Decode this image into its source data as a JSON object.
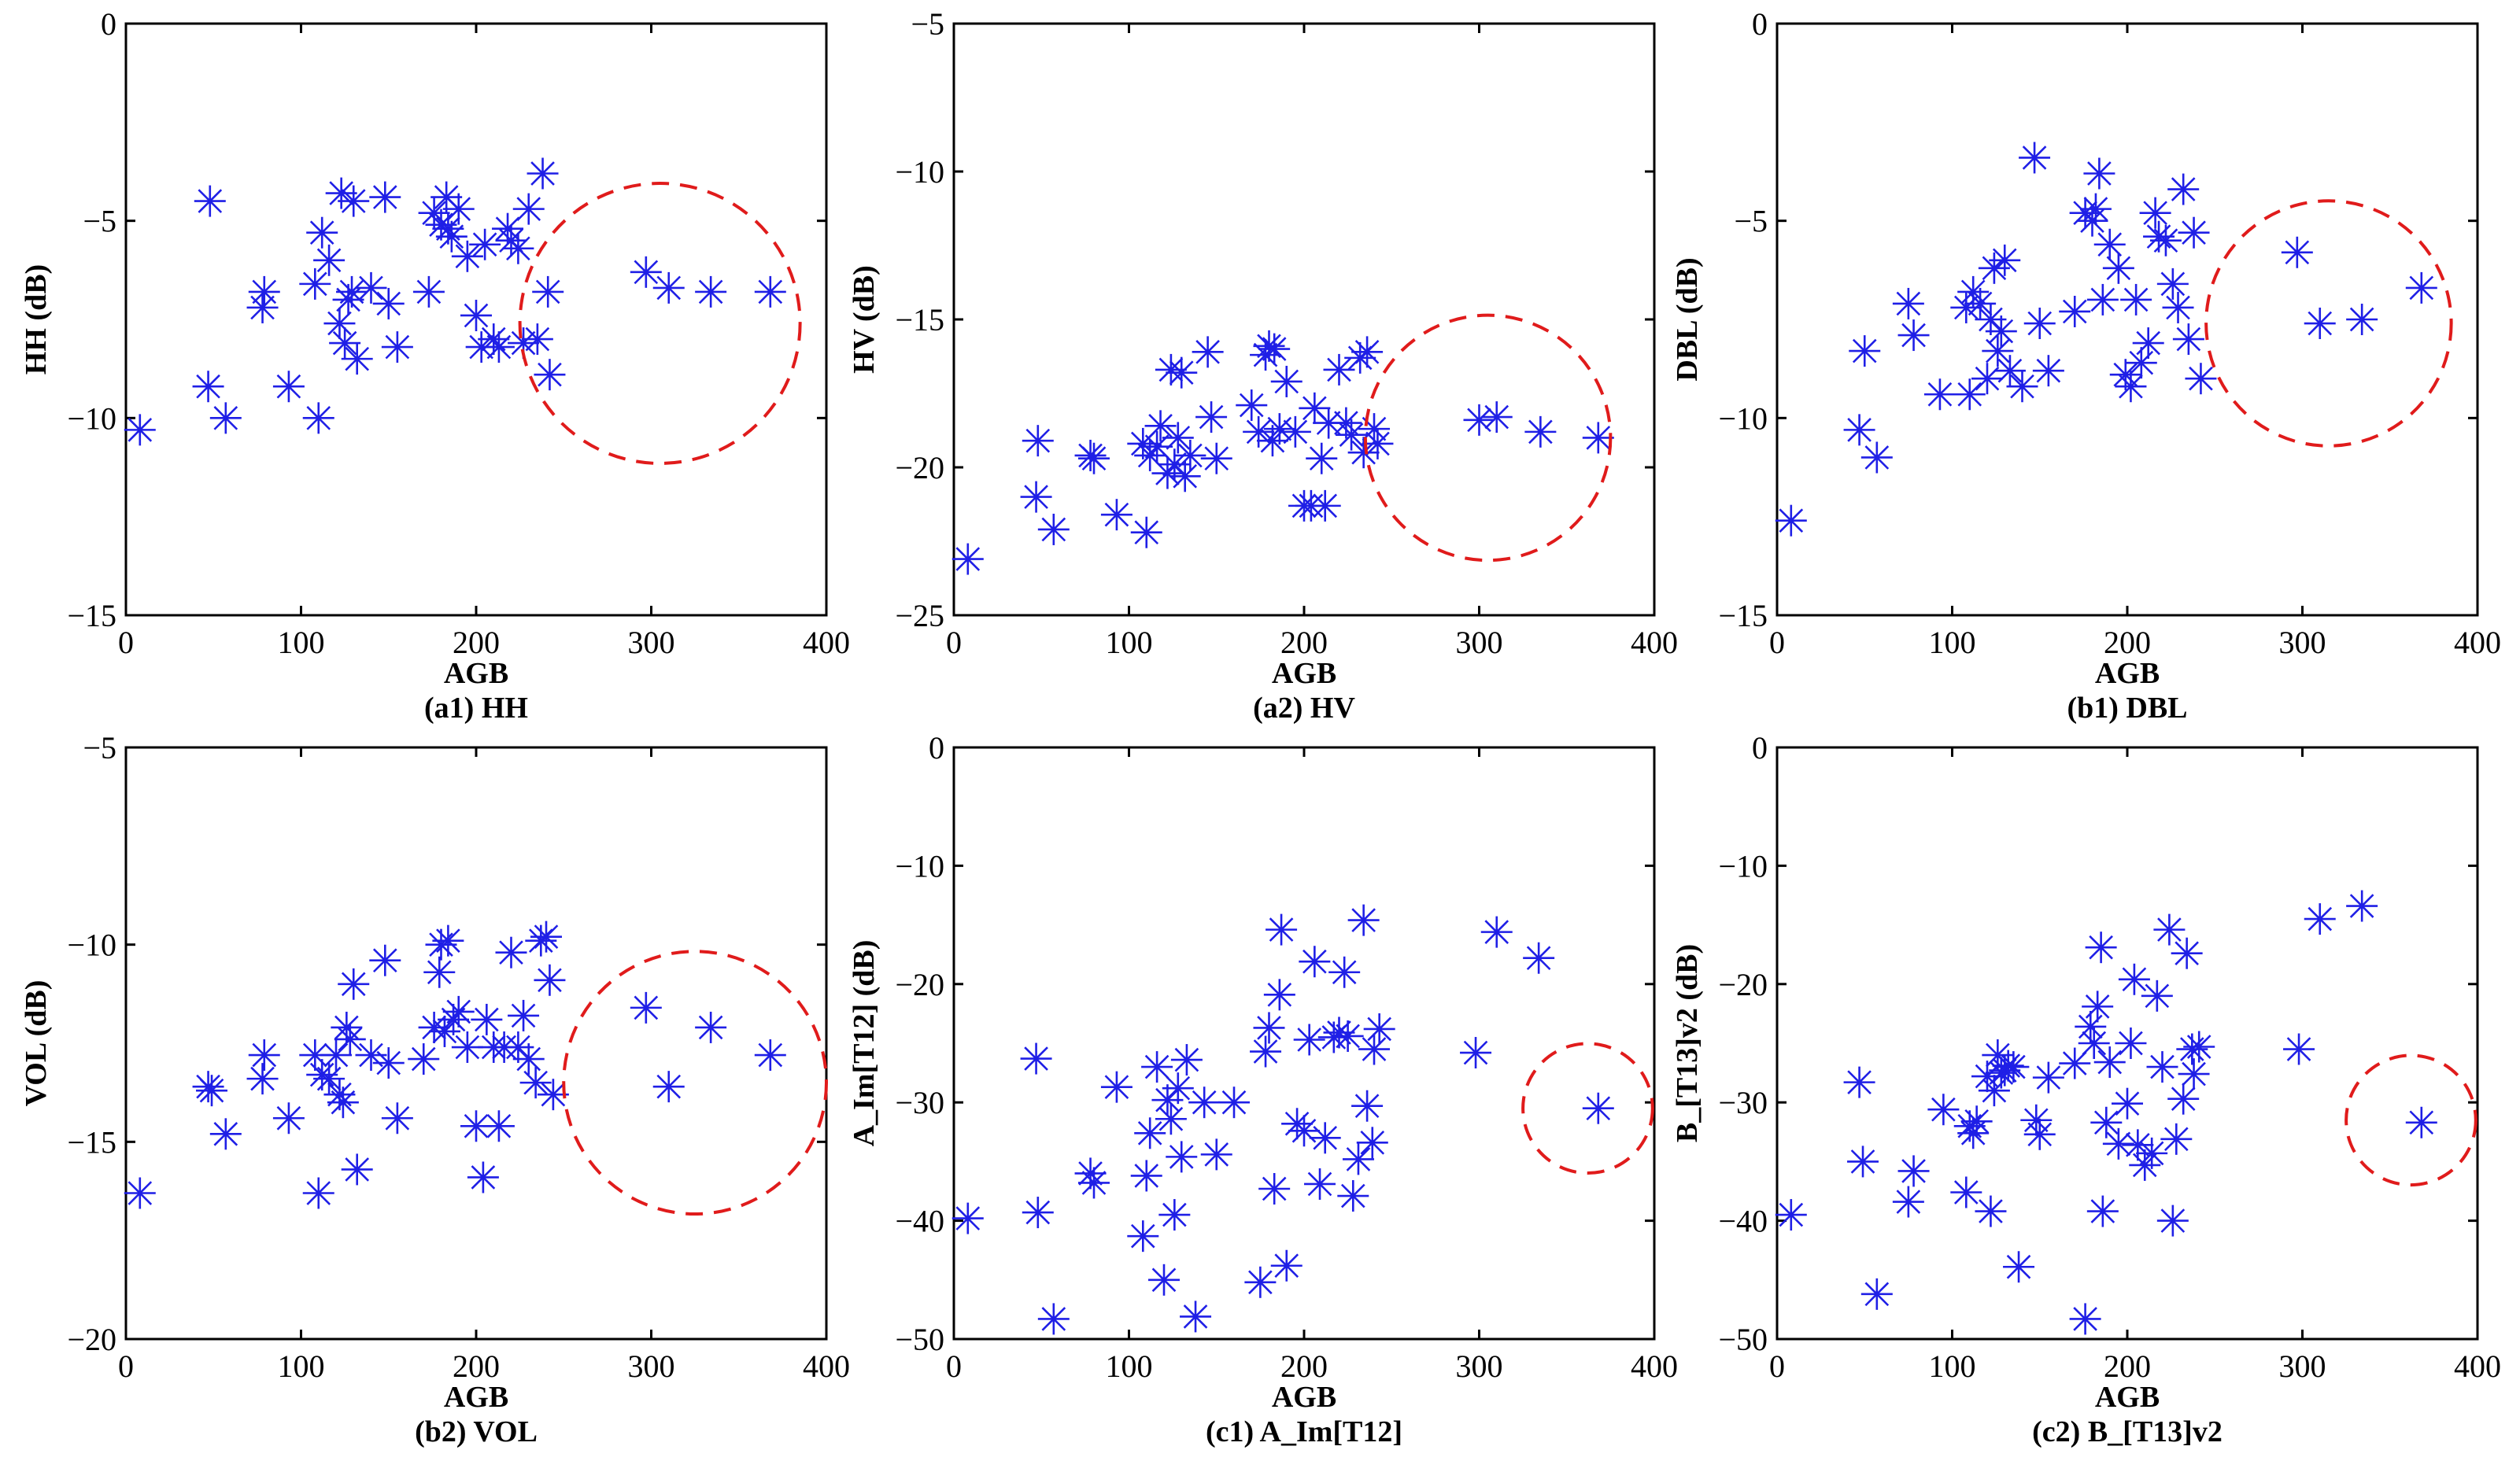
{
  "figure": {
    "marker": "asterisk",
    "marker_color": "#1f1fe6",
    "circle_color": "#e01b1b"
  },
  "chart_data": [
    {
      "type": "scatter",
      "caption": "(a1) HH",
      "xlabel": "AGB",
      "ylabel": "HH (dB)",
      "xlim": [
        0,
        400
      ],
      "ylim": [
        -15,
        0
      ],
      "xticks": [
        0,
        100,
        200,
        300,
        400
      ],
      "yticks": [
        -15,
        -10,
        -5,
        0
      ],
      "xtick_labels": [
        "0",
        "100",
        "200",
        "300",
        "400"
      ],
      "ytick_labels": [
        "−15",
        "−10",
        "−5",
        "0"
      ],
      "points": [
        [
          8,
          -10.3
        ],
        [
          47,
          -9.2
        ],
        [
          48,
          -4.5
        ],
        [
          57,
          -10.0
        ],
        [
          78,
          -7.2
        ],
        [
          79,
          -6.8
        ],
        [
          93,
          -9.2
        ],
        [
          108,
          -6.6
        ],
        [
          110,
          -10.0
        ],
        [
          112,
          -5.3
        ],
        [
          116,
          -6.0
        ],
        [
          122,
          -7.6
        ],
        [
          123,
          -4.3
        ],
        [
          125,
          -8.1
        ],
        [
          127,
          -7.0
        ],
        [
          129,
          -6.8
        ],
        [
          130,
          -4.5
        ],
        [
          132,
          -8.5
        ],
        [
          140,
          -6.7
        ],
        [
          148,
          -4.4
        ],
        [
          150,
          -7.1
        ],
        [
          155,
          -8.2
        ],
        [
          173,
          -6.8
        ],
        [
          176,
          -4.8
        ],
        [
          180,
          -5.1
        ],
        [
          183,
          -4.4
        ],
        [
          184,
          -5.2
        ],
        [
          186,
          -5.4
        ],
        [
          190,
          -4.7
        ],
        [
          195,
          -5.9
        ],
        [
          200,
          -7.4
        ],
        [
          203,
          -8.2
        ],
        [
          205,
          -5.6
        ],
        [
          210,
          -8.0
        ],
        [
          213,
          -8.2
        ],
        [
          218,
          -5.2
        ],
        [
          220,
          -5.5
        ],
        [
          224,
          -5.7
        ],
        [
          227,
          -8.1
        ],
        [
          230,
          -4.7
        ],
        [
          235,
          -8.0
        ],
        [
          238,
          -3.8
        ],
        [
          241,
          -6.8
        ],
        [
          242,
          -8.9
        ],
        [
          297,
          -6.3
        ],
        [
          310,
          -6.7
        ],
        [
          334,
          -6.8
        ],
        [
          368,
          -6.8
        ]
      ],
      "highlight_circle": {
        "cx": 305,
        "cy": -7.6,
        "r_x": 80
      }
    },
    {
      "type": "scatter",
      "caption": "(a2) HV",
      "xlabel": "AGB",
      "ylabel": "HV (dB)",
      "xlim": [
        0,
        400
      ],
      "ylim": [
        -25,
        -5
      ],
      "xticks": [
        0,
        100,
        200,
        300,
        400
      ],
      "yticks": [
        -25,
        -20,
        -15,
        -10,
        -5
      ],
      "xtick_labels": [
        "0",
        "100",
        "200",
        "300",
        "400"
      ],
      "ytick_labels": [
        "−25",
        "−20",
        "−15",
        "−10",
        "−5"
      ],
      "points": [
        [
          8,
          -23.1
        ],
        [
          47,
          -21.0
        ],
        [
          48,
          -19.1
        ],
        [
          57,
          -22.1
        ],
        [
          78,
          -19.6
        ],
        [
          80,
          -19.7
        ],
        [
          93,
          -21.6
        ],
        [
          108,
          -19.2
        ],
        [
          110,
          -22.2
        ],
        [
          112,
          -19.6
        ],
        [
          116,
          -19.3
        ],
        [
          118,
          -18.6
        ],
        [
          122,
          -20.2
        ],
        [
          124,
          -16.7
        ],
        [
          126,
          -19.9
        ],
        [
          128,
          -19.0
        ],
        [
          130,
          -16.8
        ],
        [
          132,
          -20.3
        ],
        [
          135,
          -19.6
        ],
        [
          145,
          -16.1
        ],
        [
          147,
          -18.3
        ],
        [
          150,
          -19.7
        ],
        [
          170,
          -17.9
        ],
        [
          174,
          -18.8
        ],
        [
          178,
          -16.2
        ],
        [
          180,
          -15.9
        ],
        [
          182,
          -19.1
        ],
        [
          183,
          -16.0
        ],
        [
          186,
          -18.7
        ],
        [
          190,
          -17.1
        ],
        [
          195,
          -18.8
        ],
        [
          200,
          -21.3
        ],
        [
          204,
          -21.3
        ],
        [
          206,
          -18.0
        ],
        [
          210,
          -19.7
        ],
        [
          212,
          -21.3
        ],
        [
          214,
          -18.5
        ],
        [
          220,
          -16.7
        ],
        [
          224,
          -18.5
        ],
        [
          227,
          -18.9
        ],
        [
          232,
          -16.3
        ],
        [
          234,
          -19.5
        ],
        [
          236,
          -16.1
        ],
        [
          240,
          -18.7
        ],
        [
          242,
          -19.2
        ],
        [
          300,
          -18.4
        ],
        [
          310,
          -18.3
        ],
        [
          335,
          -18.8
        ],
        [
          368,
          -19.0
        ]
      ],
      "highlight_circle": {
        "cx": 305,
        "cy": -19.0,
        "r_x": 70
      }
    },
    {
      "type": "scatter",
      "caption": "(b1) DBL",
      "xlabel": "AGB",
      "ylabel": "DBL (dB)",
      "xlim": [
        0,
        400
      ],
      "ylim": [
        -15,
        0
      ],
      "xticks": [
        0,
        100,
        200,
        300,
        400
      ],
      "yticks": [
        -15,
        -10,
        -5,
        0
      ],
      "xtick_labels": [
        "0",
        "100",
        "200",
        "300",
        "400"
      ],
      "ytick_labels": [
        "−15",
        "−10",
        "−5",
        "0"
      ],
      "points": [
        [
          8,
          -12.6
        ],
        [
          47,
          -10.3
        ],
        [
          50,
          -8.3
        ],
        [
          57,
          -11.0
        ],
        [
          75,
          -7.1
        ],
        [
          78,
          -7.9
        ],
        [
          93,
          -9.4
        ],
        [
          108,
          -7.2
        ],
        [
          110,
          -9.4
        ],
        [
          112,
          -6.8
        ],
        [
          116,
          -7.1
        ],
        [
          120,
          -9.0
        ],
        [
          122,
          -7.5
        ],
        [
          124,
          -6.2
        ],
        [
          126,
          -8.3
        ],
        [
          128,
          -7.8
        ],
        [
          130,
          -6.0
        ],
        [
          133,
          -8.8
        ],
        [
          140,
          -9.2
        ],
        [
          147,
          -3.4
        ],
        [
          150,
          -7.6
        ],
        [
          155,
          -8.8
        ],
        [
          170,
          -7.3
        ],
        [
          176,
          -4.8
        ],
        [
          180,
          -5.0
        ],
        [
          182,
          -4.7
        ],
        [
          184,
          -3.8
        ],
        [
          186,
          -7.0
        ],
        [
          190,
          -5.6
        ],
        [
          195,
          -6.2
        ],
        [
          199,
          -8.9
        ],
        [
          202,
          -9.2
        ],
        [
          205,
          -7.0
        ],
        [
          208,
          -8.6
        ],
        [
          212,
          -8.1
        ],
        [
          216,
          -4.8
        ],
        [
          218,
          -5.4
        ],
        [
          222,
          -5.5
        ],
        [
          226,
          -6.6
        ],
        [
          229,
          -7.2
        ],
        [
          232,
          -4.2
        ],
        [
          235,
          -8.0
        ],
        [
          238,
          -5.3
        ],
        [
          242,
          -9.0
        ],
        [
          297,
          -5.8
        ],
        [
          310,
          -7.6
        ],
        [
          334,
          -7.5
        ],
        [
          368,
          -6.7
        ]
      ],
      "highlight_circle": {
        "cx": 315,
        "cy": -7.6,
        "r_x": 70
      }
    },
    {
      "type": "scatter",
      "caption": "(b2) VOL",
      "xlabel": "AGB",
      "ylabel": "VOL (dB)",
      "xlim": [
        0,
        400
      ],
      "ylim": [
        -20,
        -5
      ],
      "xticks": [
        0,
        100,
        200,
        300,
        400
      ],
      "yticks": [
        -20,
        -15,
        -10,
        -5
      ],
      "xtick_labels": [
        "0",
        "100",
        "200",
        "300",
        "400"
      ],
      "ytick_labels": [
        "−20",
        "−15",
        "−10",
        "−5"
      ],
      "points": [
        [
          8,
          -16.3
        ],
        [
          47,
          -13.6
        ],
        [
          49,
          -13.7
        ],
        [
          57,
          -14.8
        ],
        [
          78,
          -13.4
        ],
        [
          79,
          -12.8
        ],
        [
          93,
          -14.4
        ],
        [
          108,
          -12.8
        ],
        [
          110,
          -16.3
        ],
        [
          112,
          -13.3
        ],
        [
          116,
          -13.4
        ],
        [
          120,
          -12.8
        ],
        [
          122,
          -13.8
        ],
        [
          124,
          -14.0
        ],
        [
          126,
          -12.1
        ],
        [
          128,
          -12.4
        ],
        [
          130,
          -11.0
        ],
        [
          132,
          -15.7
        ],
        [
          140,
          -12.8
        ],
        [
          148,
          -10.4
        ],
        [
          150,
          -13.0
        ],
        [
          155,
          -14.4
        ],
        [
          170,
          -12.9
        ],
        [
          176,
          -12.1
        ],
        [
          179,
          -10.7
        ],
        [
          180,
          -10.0
        ],
        [
          182,
          -12.2
        ],
        [
          184,
          -9.9
        ],
        [
          187,
          -11.9
        ],
        [
          190,
          -11.7
        ],
        [
          195,
          -12.6
        ],
        [
          200,
          -14.6
        ],
        [
          204,
          -15.9
        ],
        [
          206,
          -11.9
        ],
        [
          210,
          -12.6
        ],
        [
          213,
          -14.6
        ],
        [
          216,
          -12.6
        ],
        [
          220,
          -10.2
        ],
        [
          224,
          -12.6
        ],
        [
          227,
          -11.8
        ],
        [
          230,
          -12.9
        ],
        [
          234,
          -13.5
        ],
        [
          237,
          -9.9
        ],
        [
          240,
          -9.8
        ],
        [
          242,
          -10.9
        ],
        [
          244,
          -13.8
        ],
        [
          297,
          -11.6
        ],
        [
          310,
          -13.6
        ],
        [
          334,
          -12.1
        ],
        [
          368,
          -12.8
        ]
      ],
      "highlight_circle": {
        "cx": 325,
        "cy": -13.5,
        "r_x": 75
      }
    },
    {
      "type": "scatter",
      "caption": "(c1) A_Im[T12]",
      "xlabel": "AGB",
      "ylabel": "A_Im[T12] (dB)",
      "xlim": [
        0,
        400
      ],
      "ylim": [
        -50,
        0
      ],
      "xticks": [
        0,
        100,
        200,
        300,
        400
      ],
      "yticks": [
        -50,
        -40,
        -30,
        -20,
        -10,
        0
      ],
      "xtick_labels": [
        "0",
        "100",
        "200",
        "300",
        "400"
      ],
      "ytick_labels": [
        "−50",
        "−40",
        "−30",
        "−20",
        "−10",
        "0"
      ],
      "points": [
        [
          8,
          -39.8
        ],
        [
          47,
          -26.3
        ],
        [
          48,
          -39.3
        ],
        [
          57,
          -48.3
        ],
        [
          78,
          -36.0
        ],
        [
          80,
          -36.8
        ],
        [
          93,
          -28.7
        ],
        [
          108,
          -41.3
        ],
        [
          110,
          -36.2
        ],
        [
          112,
          -32.6
        ],
        [
          116,
          -27.0
        ],
        [
          120,
          -45.0
        ],
        [
          122,
          -29.8
        ],
        [
          124,
          -31.4
        ],
        [
          126,
          -39.5
        ],
        [
          128,
          -28.8
        ],
        [
          130,
          -34.6
        ],
        [
          133,
          -26.4
        ],
        [
          138,
          -48.1
        ],
        [
          143,
          -30.0
        ],
        [
          150,
          -34.4
        ],
        [
          160,
          -30.0
        ],
        [
          175,
          -45.2
        ],
        [
          178,
          -25.7
        ],
        [
          180,
          -23.7
        ],
        [
          183,
          -37.3
        ],
        [
          186,
          -20.9
        ],
        [
          187,
          -15.4
        ],
        [
          190,
          -43.8
        ],
        [
          196,
          -31.8
        ],
        [
          200,
          -32.4
        ],
        [
          203,
          -24.7
        ],
        [
          206,
          -18.1
        ],
        [
          209,
          -36.9
        ],
        [
          212,
          -33.0
        ],
        [
          217,
          -24.5
        ],
        [
          220,
          -24.1
        ],
        [
          223,
          -19.0
        ],
        [
          225,
          -24.4
        ],
        [
          228,
          -37.9
        ],
        [
          231,
          -34.8
        ],
        [
          234,
          -14.6
        ],
        [
          236,
          -30.3
        ],
        [
          239,
          -33.4
        ],
        [
          240,
          -25.5
        ],
        [
          243,
          -23.8
        ],
        [
          298,
          -25.8
        ],
        [
          310,
          -15.6
        ],
        [
          334,
          -17.8
        ],
        [
          368,
          -30.5
        ]
      ],
      "highlight_circle": {
        "cx": 362,
        "cy": -30.5,
        "r_x": 37
      }
    },
    {
      "type": "scatter",
      "caption": "(c2) B_[T13]v2",
      "xlabel": "AGB",
      "ylabel": "B_[T13]v2 (dB)",
      "xlim": [
        0,
        400
      ],
      "ylim": [
        -50,
        0
      ],
      "xticks": [
        0,
        100,
        200,
        300,
        400
      ],
      "yticks": [
        -50,
        -40,
        -30,
        -20,
        -10,
        0
      ],
      "xtick_labels": [
        "0",
        "100",
        "200",
        "300",
        "400"
      ],
      "ytick_labels": [
        "−50",
        "−40",
        "−30",
        "−20",
        "−10",
        "0"
      ],
      "points": [
        [
          8,
          -39.5
        ],
        [
          47,
          -28.3
        ],
        [
          49,
          -35.0
        ],
        [
          57,
          -46.2
        ],
        [
          75,
          -38.4
        ],
        [
          78,
          -35.8
        ],
        [
          95,
          -30.6
        ],
        [
          108,
          -37.6
        ],
        [
          110,
          -32.0
        ],
        [
          112,
          -32.6
        ],
        [
          114,
          -31.6
        ],
        [
          120,
          -27.8
        ],
        [
          122,
          -39.2
        ],
        [
          124,
          -29.0
        ],
        [
          126,
          -26.0
        ],
        [
          128,
          -27.5
        ],
        [
          130,
          -27.3
        ],
        [
          132,
          -26.9
        ],
        [
          135,
          -27.0
        ],
        [
          138,
          -43.9
        ],
        [
          148,
          -31.5
        ],
        [
          150,
          -32.7
        ],
        [
          155,
          -27.9
        ],
        [
          170,
          -26.7
        ],
        [
          176,
          -48.3
        ],
        [
          179,
          -23.6
        ],
        [
          181,
          -25.0
        ],
        [
          183,
          -21.9
        ],
        [
          185,
          -16.9
        ],
        [
          186,
          -39.2
        ],
        [
          188,
          -31.7
        ],
        [
          190,
          -26.6
        ],
        [
          195,
          -33.5
        ],
        [
          200,
          -30.1
        ],
        [
          202,
          -25.0
        ],
        [
          204,
          -19.6
        ],
        [
          206,
          -33.6
        ],
        [
          210,
          -35.3
        ],
        [
          214,
          -34.3
        ],
        [
          217,
          -21.0
        ],
        [
          220,
          -27.0
        ],
        [
          224,
          -15.4
        ],
        [
          226,
          -40.0
        ],
        [
          228,
          -33.1
        ],
        [
          232,
          -29.7
        ],
        [
          234,
          -17.4
        ],
        [
          237,
          -25.5
        ],
        [
          238,
          -27.6
        ],
        [
          241,
          -25.3
        ],
        [
          298,
          -25.5
        ],
        [
          310,
          -14.5
        ],
        [
          334,
          -13.4
        ],
        [
          368,
          -31.7
        ]
      ],
      "highlight_circle": {
        "cx": 362,
        "cy": -31.5,
        "r_x": 37
      }
    }
  ]
}
